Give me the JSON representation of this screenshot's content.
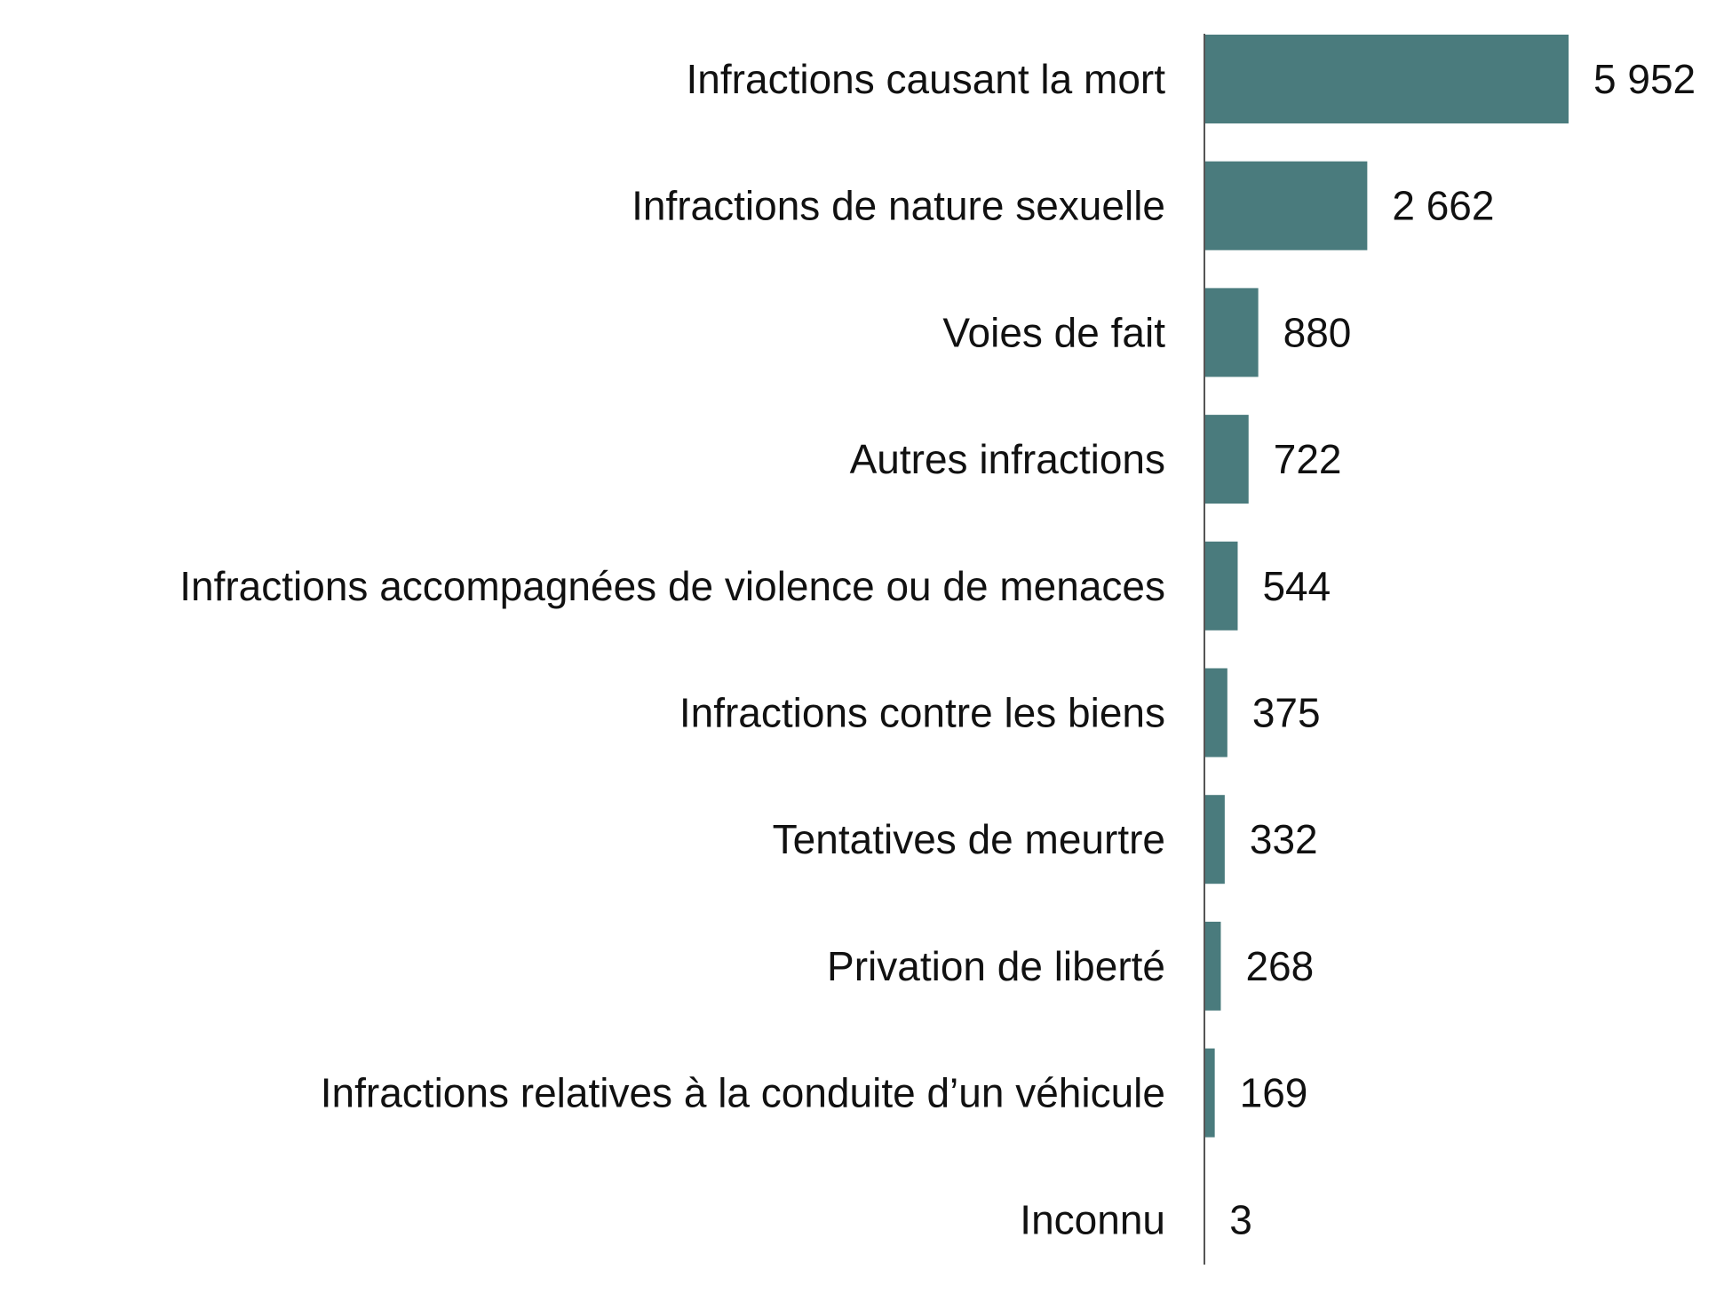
{
  "chart_data": {
    "type": "bar",
    "orientation": "horizontal",
    "title": "",
    "xlabel": "",
    "ylabel": "",
    "categories": [
      "Infractions causant la mort",
      "Infractions de nature sexuelle",
      "Voies de fait",
      "Autres infractions",
      "Infractions accompagnées de violence ou de menaces",
      "Infractions contre les biens",
      "Tentatives de meurtre",
      "Privation de liberté",
      "Infractions relatives à la conduite d’un véhicule",
      "Inconnu"
    ],
    "values": [
      5952,
      2662,
      880,
      722,
      544,
      375,
      332,
      268,
      169,
      3
    ],
    "value_labels": [
      "5 952",
      "2 662",
      "880",
      "722",
      "544",
      "375",
      "332",
      "268",
      "169",
      "3"
    ],
    "xlim": [
      0,
      5952
    ],
    "grid": false,
    "legend": "none",
    "bar_color": "#4a7b7d",
    "axis_color": "#555555"
  }
}
